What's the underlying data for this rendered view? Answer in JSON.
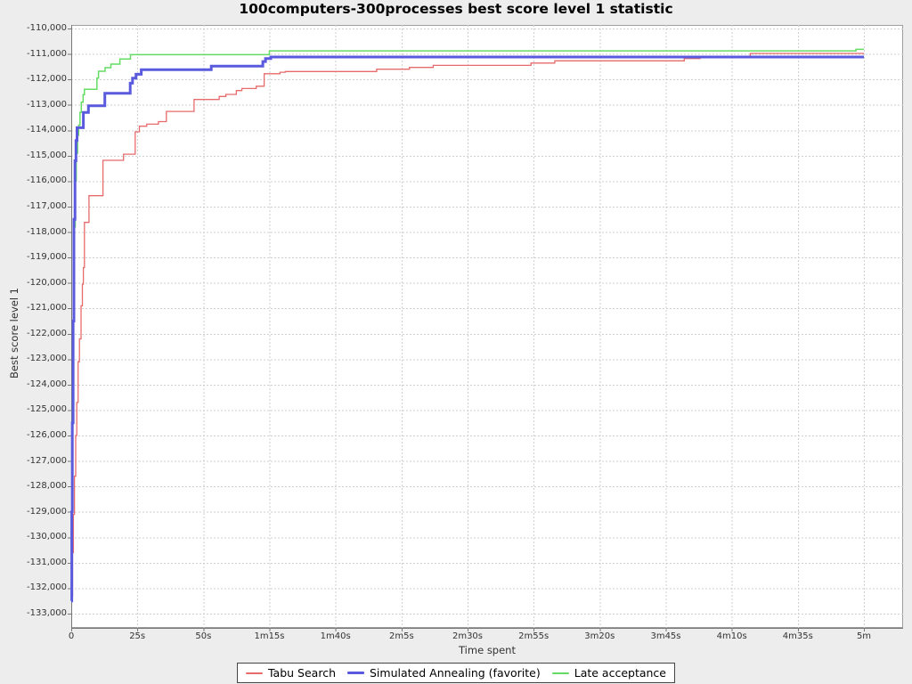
{
  "title": "100computers-300processes best score level 1 statistic",
  "x_axis": {
    "label": "Time spent",
    "range_seconds": [
      0,
      300
    ],
    "ticks": [
      {
        "label": "0",
        "seconds": 0
      },
      {
        "label": "25s",
        "seconds": 25
      },
      {
        "label": "50s",
        "seconds": 50
      },
      {
        "label": "1m15s",
        "seconds": 75
      },
      {
        "label": "1m40s",
        "seconds": 100
      },
      {
        "label": "2m5s",
        "seconds": 125
      },
      {
        "label": "2m30s",
        "seconds": 150
      },
      {
        "label": "2m55s",
        "seconds": 175
      },
      {
        "label": "3m20s",
        "seconds": 200
      },
      {
        "label": "3m45s",
        "seconds": 225
      },
      {
        "label": "4m10s",
        "seconds": 250
      },
      {
        "label": "4m35s",
        "seconds": 275
      },
      {
        "label": "5m",
        "seconds": 300
      }
    ]
  },
  "y_axis": {
    "label": "Best score level 1",
    "tick_max": -110000,
    "tick_min": -133000,
    "tick_step": 1000
  },
  "legend": [
    {
      "label": "Tabu Search",
      "color": "#e86b6b",
      "sample_thickness": 2
    },
    {
      "label": "Simulated Annealing (favorite)",
      "color": "#5a5ade",
      "sample_thickness": 3
    },
    {
      "label": "Late acceptance",
      "color": "#64dc64",
      "sample_thickness": 2
    }
  ],
  "colors": {
    "panel_background": "#ededed",
    "plot_background": "#ffffff",
    "gridline": "#cfcfcf",
    "axis": "#777777",
    "plot_border": "#9e9e9e",
    "tick_text": "#333333"
  },
  "chart_data": {
    "type": "line",
    "interpolation": "step-after",
    "title": "100computers-300processes best score level 1 statistic",
    "xlabel": "Time spent",
    "ylabel": "Best score level 1",
    "xlim_seconds": [
      0,
      300
    ],
    "ylim": [
      -133000,
      -110000
    ],
    "grid": true,
    "legend_position": "bottom-center",
    "series": [
      {
        "name": "Tabu Search",
        "color": "#e86b6b",
        "stroke_width": 1.3,
        "points": [
          [
            0.3,
            -132300
          ],
          [
            0.5,
            -130600
          ],
          [
            0.8,
            -129100
          ],
          [
            1.2,
            -127600
          ],
          [
            1.7,
            -126000
          ],
          [
            2.1,
            -124700
          ],
          [
            2.6,
            -123100
          ],
          [
            3.1,
            -122200
          ],
          [
            3.7,
            -120900
          ],
          [
            4.2,
            -120050
          ],
          [
            4.6,
            -119400
          ],
          [
            5,
            -117620
          ],
          [
            6.7,
            -116570
          ],
          [
            12,
            -115180
          ],
          [
            19.8,
            -114940
          ],
          [
            24.2,
            -114060
          ],
          [
            25.8,
            -113840
          ],
          [
            28.6,
            -113760
          ],
          [
            33,
            -113660
          ],
          [
            36,
            -113260
          ],
          [
            46.5,
            -112790
          ],
          [
            56,
            -112670
          ],
          [
            58.5,
            -112590
          ],
          [
            62.5,
            -112440
          ],
          [
            64.6,
            -112360
          ],
          [
            70,
            -112270
          ],
          [
            73,
            -111780
          ],
          [
            79,
            -111720
          ],
          [
            81,
            -111690
          ],
          [
            115.6,
            -111600
          ],
          [
            128,
            -111530
          ],
          [
            137,
            -111450
          ],
          [
            174,
            -111360
          ],
          [
            183,
            -111270
          ],
          [
            232,
            -111180
          ],
          [
            238,
            -111145
          ],
          [
            257,
            -110980
          ],
          [
            300,
            -110980
          ]
        ]
      },
      {
        "name": "Late acceptance",
        "color": "#64dc64",
        "stroke_width": 1.5,
        "points": [
          [
            0.1,
            -132500
          ],
          [
            0.3,
            -128000
          ],
          [
            0.5,
            -124000
          ],
          [
            0.8,
            -120500
          ],
          [
            1.1,
            -117800
          ],
          [
            1.5,
            -116000
          ],
          [
            1.9,
            -114900
          ],
          [
            2.4,
            -114200
          ],
          [
            2.8,
            -113800
          ],
          [
            3.3,
            -113300
          ],
          [
            3.8,
            -112900
          ],
          [
            4.5,
            -112600
          ],
          [
            5,
            -112390
          ],
          [
            9.7,
            -111950
          ],
          [
            10.3,
            -111680
          ],
          [
            12.8,
            -111540
          ],
          [
            15,
            -111400
          ],
          [
            18.4,
            -111200
          ],
          [
            22.4,
            -111030
          ],
          [
            75,
            -110880
          ],
          [
            297,
            -110820
          ],
          [
            300,
            -110820
          ]
        ]
      },
      {
        "name": "Simulated Annealing (favorite)",
        "color": "#5a5ade",
        "stroke_width": 3,
        "points": [
          [
            0,
            -132500
          ],
          [
            0.2,
            -129000
          ],
          [
            0.4,
            -125500
          ],
          [
            0.7,
            -121500
          ],
          [
            1,
            -117500
          ],
          [
            1.4,
            -115200
          ],
          [
            1.8,
            -114400
          ],
          [
            2.2,
            -113900
          ],
          [
            4.6,
            -113300
          ],
          [
            6.5,
            -113040
          ],
          [
            12.7,
            -112550
          ],
          [
            22.3,
            -112150
          ],
          [
            23.2,
            -111950
          ],
          [
            24.5,
            -111800
          ],
          [
            26.5,
            -111620
          ],
          [
            53,
            -111480
          ],
          [
            72.5,
            -111300
          ],
          [
            73.5,
            -111180
          ],
          [
            75.5,
            -111120
          ],
          [
            300,
            -111120
          ]
        ]
      }
    ]
  }
}
